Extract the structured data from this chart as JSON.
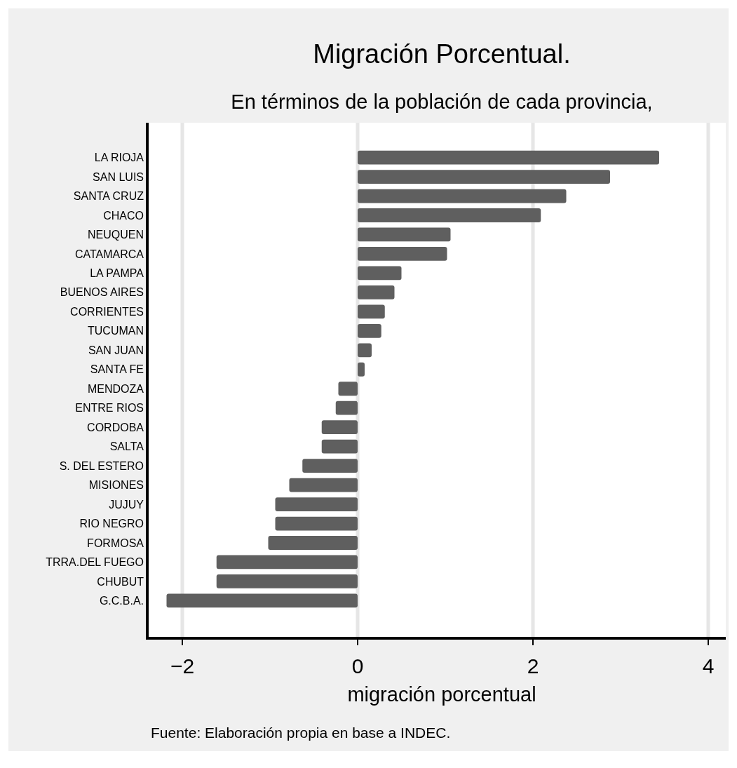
{
  "chart_data": {
    "type": "bar",
    "orientation": "horizontal",
    "title": "Migración Porcentual.",
    "subtitle": "En términos de la población de cada provincia,",
    "xlabel": "migración porcentual",
    "annotations": [
      "Fuente: Elaboración propia en base a INDEC."
    ],
    "categories": [
      "LA RIOJA",
      "SAN LUIS",
      "SANTA CRUZ",
      "CHACO",
      "NEUQUEN",
      "CATAMARCA",
      "LA PAMPA",
      "BUENOS AIRES",
      "CORRIENTES",
      "TUCUMAN",
      "SAN JUAN",
      "SANTA FE",
      "MENDOZA",
      "ENTRE RIOS",
      "CORDOBA",
      "SALTA",
      "S. DEL ESTERO",
      "MISIONES",
      "JUJUY",
      "RIO NEGRO",
      "FORMOSA",
      "TRRA.DEL FUEGO",
      "CHUBUT",
      "G.C.B.A."
    ],
    "values": [
      3.44,
      2.88,
      2.38,
      2.09,
      1.06,
      1.02,
      0.5,
      0.42,
      0.31,
      0.27,
      0.16,
      0.08,
      -0.22,
      -0.25,
      -0.41,
      -0.41,
      -0.63,
      -0.78,
      -0.94,
      -0.94,
      -1.02,
      -1.61,
      -1.61,
      -2.18
    ],
    "color": "#5f5f5f",
    "xlim": [
      -2.4,
      4.2
    ],
    "xticks": [
      -2,
      0,
      2,
      4
    ],
    "grid": "x"
  }
}
